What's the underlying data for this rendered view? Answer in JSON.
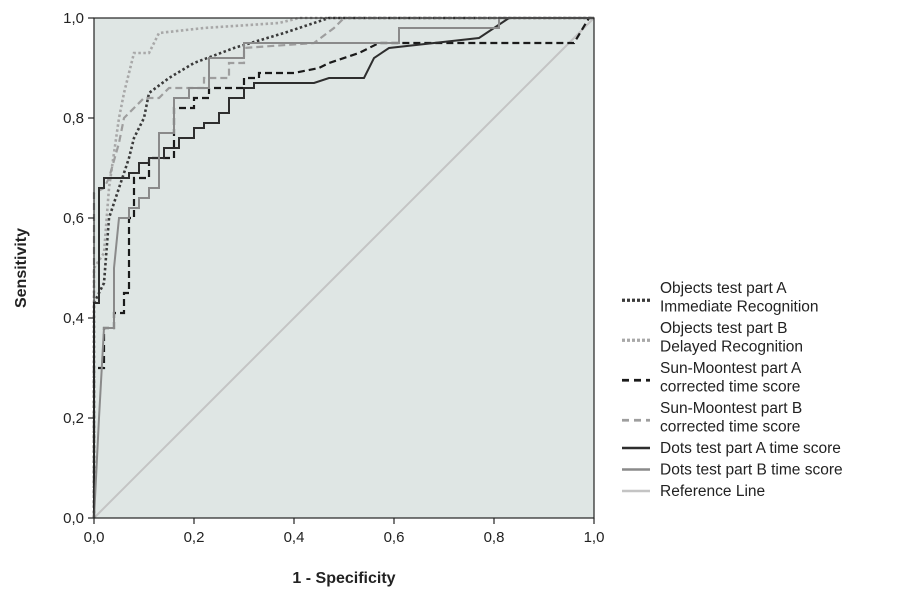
{
  "chart_data": {
    "type": "line",
    "title": "",
    "xlabel": "1 - Specificity",
    "ylabel": "Sensitivity",
    "xlim": [
      0,
      1
    ],
    "ylim": [
      0,
      1
    ],
    "x_ticks": [
      "0,0",
      "0,2",
      "0,4",
      "0,6",
      "0,8",
      "1,0"
    ],
    "y_ticks": [
      "0,0",
      "0,2",
      "0,4",
      "0,6",
      "0,8",
      "1,0"
    ],
    "background_color": "#dfe6e4",
    "grid": false,
    "legend_position": "right",
    "series": [
      {
        "name": "Objects test part A Immediate Recognition",
        "legend_lines": [
          "Objects test part A",
          "Immediate Recognition"
        ],
        "color": "#3a3a3a",
        "dash": "dotted",
        "points": [
          [
            0,
            0
          ],
          [
            0,
            0.43
          ],
          [
            0.02,
            0.47
          ],
          [
            0.03,
            0.6
          ],
          [
            0.05,
            0.66
          ],
          [
            0.07,
            0.72
          ],
          [
            0.08,
            0.76
          ],
          [
            0.1,
            0.8
          ],
          [
            0.11,
            0.85
          ],
          [
            0.15,
            0.88
          ],
          [
            0.2,
            0.91
          ],
          [
            0.28,
            0.94
          ],
          [
            0.38,
            0.97
          ],
          [
            0.47,
            1.0
          ],
          [
            1,
            1
          ]
        ]
      },
      {
        "name": "Objects test part B Delayed Recognition",
        "legend_lines": [
          "Objects test part B",
          "Delayed Recognition"
        ],
        "color": "#a8a8a8",
        "dash": "dotted",
        "points": [
          [
            0,
            0
          ],
          [
            0,
            0.5
          ],
          [
            0.02,
            0.53
          ],
          [
            0.03,
            0.66
          ],
          [
            0.05,
            0.8
          ],
          [
            0.06,
            0.85
          ],
          [
            0.07,
            0.89
          ],
          [
            0.08,
            0.93
          ],
          [
            0.11,
            0.93
          ],
          [
            0.13,
            0.97
          ],
          [
            0.22,
            0.98
          ],
          [
            0.37,
            0.99
          ],
          [
            0.41,
            1.0
          ],
          [
            1,
            1
          ]
        ]
      },
      {
        "name": "Sun-Moontest part A corrected time score",
        "legend_lines": [
          "Sun-Moontest part A",
          "corrected time score"
        ],
        "color": "#1a1a1a",
        "dash": "dashed",
        "points": [
          [
            0,
            0
          ],
          [
            0,
            0.3
          ],
          [
            0.02,
            0.3
          ],
          [
            0.02,
            0.38
          ],
          [
            0.04,
            0.38
          ],
          [
            0.04,
            0.41
          ],
          [
            0.06,
            0.41
          ],
          [
            0.06,
            0.45
          ],
          [
            0.07,
            0.45
          ],
          [
            0.07,
            0.6
          ],
          [
            0.08,
            0.6
          ],
          [
            0.08,
            0.68
          ],
          [
            0.11,
            0.68
          ],
          [
            0.11,
            0.72
          ],
          [
            0.16,
            0.72
          ],
          [
            0.16,
            0.82
          ],
          [
            0.2,
            0.82
          ],
          [
            0.2,
            0.84
          ],
          [
            0.23,
            0.84
          ],
          [
            0.23,
            0.86
          ],
          [
            0.3,
            0.86
          ],
          [
            0.3,
            0.88
          ],
          [
            0.33,
            0.88
          ],
          [
            0.33,
            0.89
          ],
          [
            0.4,
            0.89
          ],
          [
            0.45,
            0.9
          ],
          [
            0.47,
            0.91
          ],
          [
            0.53,
            0.93
          ],
          [
            0.57,
            0.95
          ],
          [
            0.85,
            0.95
          ],
          [
            0.85,
            0.95
          ],
          [
            0.96,
            0.95
          ],
          [
            0.99,
            1.0
          ],
          [
            1,
            1
          ]
        ]
      },
      {
        "name": "Sun-Moontest part B corrected time score",
        "legend_lines": [
          "Sun-Moontest part B",
          "corrected time score"
        ],
        "color": "#9e9e9e",
        "dash": "dashed",
        "points": [
          [
            0,
            0
          ],
          [
            0,
            0.65
          ],
          [
            0.02,
            0.66
          ],
          [
            0.03,
            0.68
          ],
          [
            0.05,
            0.75
          ],
          [
            0.06,
            0.8
          ],
          [
            0.08,
            0.82
          ],
          [
            0.1,
            0.84
          ],
          [
            0.13,
            0.84
          ],
          [
            0.15,
            0.86
          ],
          [
            0.22,
            0.86
          ],
          [
            0.22,
            0.88
          ],
          [
            0.27,
            0.88
          ],
          [
            0.27,
            0.91
          ],
          [
            0.3,
            0.91
          ],
          [
            0.3,
            0.94
          ],
          [
            0.44,
            0.95
          ],
          [
            0.48,
            0.98
          ],
          [
            0.5,
            1.0
          ],
          [
            1,
            1
          ]
        ]
      },
      {
        "name": "Dots test part A time score",
        "legend_lines": [
          "Dots test part A time score"
        ],
        "color": "#2e2e2e",
        "dash": "solid",
        "points": [
          [
            0,
            0
          ],
          [
            0,
            0.43
          ],
          [
            0.01,
            0.43
          ],
          [
            0.01,
            0.66
          ],
          [
            0.02,
            0.66
          ],
          [
            0.02,
            0.68
          ],
          [
            0.07,
            0.68
          ],
          [
            0.07,
            0.69
          ],
          [
            0.09,
            0.69
          ],
          [
            0.09,
            0.71
          ],
          [
            0.11,
            0.71
          ],
          [
            0.11,
            0.72
          ],
          [
            0.14,
            0.72
          ],
          [
            0.14,
            0.74
          ],
          [
            0.17,
            0.74
          ],
          [
            0.17,
            0.76
          ],
          [
            0.2,
            0.76
          ],
          [
            0.2,
            0.78
          ],
          [
            0.22,
            0.78
          ],
          [
            0.22,
            0.79
          ],
          [
            0.25,
            0.79
          ],
          [
            0.25,
            0.81
          ],
          [
            0.27,
            0.81
          ],
          [
            0.27,
            0.84
          ],
          [
            0.3,
            0.84
          ],
          [
            0.3,
            0.86
          ],
          [
            0.32,
            0.86
          ],
          [
            0.32,
            0.87
          ],
          [
            0.44,
            0.87
          ],
          [
            0.47,
            0.88
          ],
          [
            0.54,
            0.88
          ],
          [
            0.56,
            0.92
          ],
          [
            0.59,
            0.94
          ],
          [
            0.77,
            0.96
          ],
          [
            0.83,
            1.0
          ],
          [
            1,
            1
          ]
        ]
      },
      {
        "name": "Dots test part B time score",
        "legend_lines": [
          "Dots test part B time score"
        ],
        "color": "#8a8a8a",
        "dash": "solid",
        "points": [
          [
            0,
            0
          ],
          [
            0.01,
            0.2
          ],
          [
            0.02,
            0.38
          ],
          [
            0.04,
            0.38
          ],
          [
            0.04,
            0.5
          ],
          [
            0.05,
            0.6
          ],
          [
            0.07,
            0.6
          ],
          [
            0.07,
            0.62
          ],
          [
            0.09,
            0.62
          ],
          [
            0.09,
            0.64
          ],
          [
            0.11,
            0.64
          ],
          [
            0.11,
            0.66
          ],
          [
            0.13,
            0.66
          ],
          [
            0.13,
            0.77
          ],
          [
            0.16,
            0.77
          ],
          [
            0.16,
            0.84
          ],
          [
            0.19,
            0.84
          ],
          [
            0.19,
            0.86
          ],
          [
            0.23,
            0.86
          ],
          [
            0.23,
            0.92
          ],
          [
            0.3,
            0.92
          ],
          [
            0.3,
            0.95
          ],
          [
            0.61,
            0.95
          ],
          [
            0.61,
            0.98
          ],
          [
            0.81,
            0.98
          ],
          [
            0.81,
            1.0
          ],
          [
            1,
            1
          ]
        ]
      },
      {
        "name": "Reference Line",
        "legend_lines": [
          "Reference Line"
        ],
        "color": "#c4c4c4",
        "dash": "solid",
        "points": [
          [
            0,
            0
          ],
          [
            1,
            1
          ]
        ]
      }
    ]
  }
}
